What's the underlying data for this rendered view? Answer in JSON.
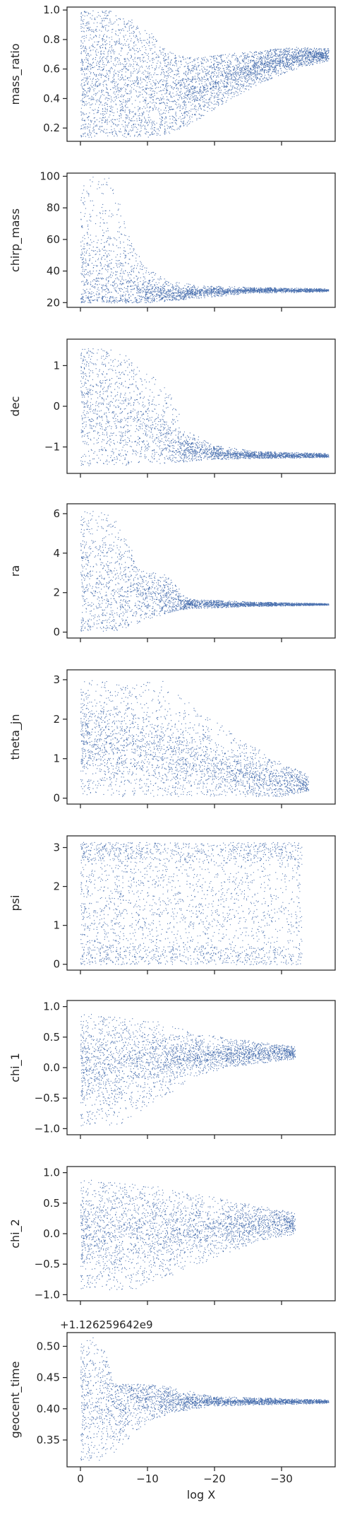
{
  "chart_data": {
    "type": "scatter",
    "layout": "stacked-panels-shared-x",
    "xlabel": "log X",
    "x_ticks": [
      0,
      -10,
      -20,
      -30
    ],
    "xlim": [
      2,
      -38
    ],
    "marker_color": "#4c72b0",
    "grid": false,
    "panels": [
      {
        "ylabel": "mass_ratio",
        "ylim": [
          0.11,
          1.02
        ],
        "y_ticks": [
          0.2,
          0.4,
          0.6,
          0.8,
          1.0
        ],
        "y_tick_labels": [
          "0.2",
          "0.4",
          "0.6",
          "0.8",
          "1.0"
        ],
        "x_tick_labels_shown": false,
        "offset_text": "",
        "density": 6000,
        "envelope": [
          {
            "x": 0,
            "lo": 0.14,
            "hi": 1.0,
            "c": 0.55,
            "spread": 0.28
          },
          {
            "x": -5,
            "lo": 0.14,
            "hi": 1.0,
            "c": 0.5,
            "spread": 0.28
          },
          {
            "x": -10,
            "lo": 0.14,
            "hi": 0.88,
            "c": 0.42,
            "spread": 0.22
          },
          {
            "x": -13,
            "lo": 0.16,
            "hi": 0.72,
            "c": 0.42,
            "spread": 0.16
          },
          {
            "x": -17,
            "lo": 0.24,
            "hi": 0.68,
            "c": 0.47,
            "spread": 0.12
          },
          {
            "x": -21,
            "lo": 0.36,
            "hi": 0.7,
            "c": 0.54,
            "spread": 0.09
          },
          {
            "x": -25,
            "lo": 0.46,
            "hi": 0.72,
            "c": 0.6,
            "spread": 0.06
          },
          {
            "x": -29,
            "lo": 0.55,
            "hi": 0.74,
            "c": 0.65,
            "spread": 0.04
          },
          {
            "x": -32,
            "lo": 0.6,
            "hi": 0.75,
            "c": 0.68,
            "spread": 0.03
          },
          {
            "x": -37,
            "lo": 0.66,
            "hi": 0.74,
            "c": 0.7,
            "spread": 0.02
          }
        ]
      },
      {
        "ylabel": "chirp_mass",
        "ylim": [
          17,
          102
        ],
        "y_ticks": [
          20,
          40,
          60,
          80,
          100
        ],
        "y_tick_labels": [
          "20",
          "40",
          "60",
          "80",
          "100"
        ],
        "x_tick_labels_shown": false,
        "offset_text": "",
        "density": 4500,
        "envelope": [
          {
            "x": 0,
            "lo": 20,
            "hi": 100,
            "c": 35,
            "spread": 18
          },
          {
            "x": -5,
            "lo": 20,
            "hi": 100,
            "c": 32,
            "spread": 14
          },
          {
            "x": -7,
            "lo": 20,
            "hi": 65,
            "c": 28,
            "spread": 8
          },
          {
            "x": -10,
            "lo": 20,
            "hi": 42,
            "c": 26,
            "spread": 4
          },
          {
            "x": -13,
            "lo": 21,
            "hi": 34,
            "c": 25,
            "spread": 2.5
          },
          {
            "x": -18,
            "lo": 23,
            "hi": 31,
            "c": 27,
            "spread": 1.2
          },
          {
            "x": -25,
            "lo": 26,
            "hi": 30,
            "c": 28,
            "spread": 0.7
          },
          {
            "x": -37,
            "lo": 27,
            "hi": 29,
            "c": 28,
            "spread": 0.3
          }
        ]
      },
      {
        "ylabel": "dec",
        "ylim": [
          -1.65,
          1.65
        ],
        "y_ticks": [
          -1,
          0,
          1
        ],
        "y_tick_labels": [
          "−1",
          "0",
          "1"
        ],
        "x_tick_labels_shown": false,
        "offset_text": "",
        "density": 5000,
        "envelope": [
          {
            "x": 0,
            "lo": -1.45,
            "hi": 1.45,
            "c": 0.2,
            "spread": 0.9
          },
          {
            "x": -6,
            "lo": -1.45,
            "hi": 1.4,
            "c": -0.3,
            "spread": 0.8
          },
          {
            "x": -10,
            "lo": -1.4,
            "hi": 0.9,
            "c": -0.6,
            "spread": 0.5
          },
          {
            "x": -13,
            "lo": -1.4,
            "hi": 0.4,
            "c": -0.9,
            "spread": 0.3
          },
          {
            "x": -16,
            "lo": -1.35,
            "hi": -0.6,
            "c": -1.05,
            "spread": 0.15
          },
          {
            "x": -20,
            "lo": -1.3,
            "hi": -0.95,
            "c": -1.15,
            "spread": 0.07
          },
          {
            "x": -26,
            "lo": -1.28,
            "hi": -1.1,
            "c": -1.2,
            "spread": 0.04
          },
          {
            "x": -37,
            "lo": -1.25,
            "hi": -1.15,
            "c": -1.21,
            "spread": 0.02
          }
        ]
      },
      {
        "ylabel": "ra",
        "ylim": [
          -0.3,
          6.5
        ],
        "y_ticks": [
          0,
          2,
          4,
          6
        ],
        "y_tick_labels": [
          "0",
          "2",
          "4",
          "6"
        ],
        "x_tick_labels_shown": false,
        "offset_text": "",
        "density": 5000,
        "envelope": [
          {
            "x": 0,
            "lo": 0.05,
            "hi": 6.25,
            "c": 2.5,
            "spread": 2.2
          },
          {
            "x": -5,
            "lo": 0.05,
            "hi": 6.0,
            "c": 2.0,
            "spread": 1.6
          },
          {
            "x": -9,
            "lo": 0.5,
            "hi": 3.2,
            "c": 1.9,
            "spread": 0.7
          },
          {
            "x": -13,
            "lo": 1.0,
            "hi": 2.9,
            "c": 1.6,
            "spread": 0.5
          },
          {
            "x": -16,
            "lo": 1.2,
            "hi": 1.7,
            "c": 1.45,
            "spread": 0.12
          },
          {
            "x": -25,
            "lo": 1.3,
            "hi": 1.55,
            "c": 1.42,
            "spread": 0.05
          },
          {
            "x": -37,
            "lo": 1.38,
            "hi": 1.46,
            "c": 1.42,
            "spread": 0.02
          }
        ]
      },
      {
        "ylabel": "theta_jn",
        "ylim": [
          -0.15,
          3.25
        ],
        "y_ticks": [
          0,
          1,
          2,
          3
        ],
        "y_tick_labels": [
          "0",
          "1",
          "2",
          "3"
        ],
        "x_tick_labels_shown": false,
        "offset_text": "",
        "density": 5500,
        "envelope": [
          {
            "x": 0,
            "lo": 0.1,
            "hi": 3.0,
            "c": 1.5,
            "spread": 0.6
          },
          {
            "x": -6,
            "lo": 0.05,
            "hi": 3.0,
            "c": 1.3,
            "spread": 0.6
          },
          {
            "x": -12,
            "lo": 0.05,
            "hi": 3.0,
            "c": 1.1,
            "spread": 0.5
          },
          {
            "x": -18,
            "lo": 0.05,
            "hi": 2.2,
            "c": 0.85,
            "spread": 0.4
          },
          {
            "x": -24,
            "lo": 0.05,
            "hi": 1.5,
            "c": 0.6,
            "spread": 0.3
          },
          {
            "x": -30,
            "lo": 0.05,
            "hi": 0.9,
            "c": 0.4,
            "spread": 0.2
          },
          {
            "x": -34,
            "lo": 0.2,
            "hi": 0.6,
            "c": 0.35,
            "spread": 0.1
          }
        ]
      },
      {
        "ylabel": "psi",
        "ylim": [
          -0.15,
          3.3
        ],
        "y_ticks": [
          0,
          1,
          2,
          3
        ],
        "y_tick_labels": [
          "0",
          "1",
          "2",
          "3"
        ],
        "x_tick_labels_shown": false,
        "offset_text": "",
        "density": 6000,
        "envelope": [
          {
            "x": 0,
            "lo": 0.0,
            "hi": 3.14,
            "c": 1.57,
            "spread": 2.0
          },
          {
            "x": -15,
            "lo": 0.0,
            "hi": 3.14,
            "c": 1.57,
            "spread": 2.0
          },
          {
            "x": -30,
            "lo": 0.0,
            "hi": 3.14,
            "c": 1.57,
            "spread": 2.0
          },
          {
            "x": -33,
            "lo": 0.0,
            "hi": 3.14,
            "c": 1.57,
            "spread": 2.0
          }
        ]
      },
      {
        "ylabel": "chi_1",
        "ylim": [
          -1.1,
          1.1
        ],
        "y_ticks": [
          -1.0,
          -0.5,
          0.0,
          0.5,
          1.0
        ],
        "y_tick_labels": [
          "−1.0",
          "−0.5",
          "0.0",
          "0.5",
          "1.0"
        ],
        "x_tick_labels_shown": false,
        "offset_text": "",
        "density": 5500,
        "envelope": [
          {
            "x": 0,
            "lo": -0.95,
            "hi": 0.9,
            "c": 0.0,
            "spread": 0.45
          },
          {
            "x": -6,
            "lo": -0.95,
            "hi": 0.85,
            "c": 0.05,
            "spread": 0.35
          },
          {
            "x": -12,
            "lo": -0.5,
            "hi": 0.75,
            "c": 0.15,
            "spread": 0.2
          },
          {
            "x": -18,
            "lo": -0.1,
            "hi": 0.55,
            "c": 0.2,
            "spread": 0.12
          },
          {
            "x": -25,
            "lo": 0.05,
            "hi": 0.45,
            "c": 0.23,
            "spread": 0.08
          },
          {
            "x": -32,
            "lo": 0.15,
            "hi": 0.35,
            "c": 0.25,
            "spread": 0.05
          }
        ]
      },
      {
        "ylabel": "chi_2",
        "ylim": [
          -1.1,
          1.1
        ],
        "y_ticks": [
          -1.0,
          -0.5,
          0.0,
          0.5,
          1.0
        ],
        "y_tick_labels": [
          "−1.0",
          "−0.5",
          "0.0",
          "0.5",
          "1.0"
        ],
        "x_tick_labels_shown": false,
        "offset_text": "",
        "density": 6000,
        "envelope": [
          {
            "x": 0,
            "lo": -0.9,
            "hi": 0.9,
            "c": 0.0,
            "spread": 0.4
          },
          {
            "x": -7,
            "lo": -0.95,
            "hi": 0.85,
            "c": 0.0,
            "spread": 0.4
          },
          {
            "x": -13,
            "lo": -0.7,
            "hi": 0.75,
            "c": 0.05,
            "spread": 0.3
          },
          {
            "x": -20,
            "lo": -0.4,
            "hi": 0.6,
            "c": 0.1,
            "spread": 0.2
          },
          {
            "x": -27,
            "lo": -0.1,
            "hi": 0.45,
            "c": 0.15,
            "spread": 0.12
          },
          {
            "x": -32,
            "lo": 0.0,
            "hi": 0.35,
            "c": 0.18,
            "spread": 0.08
          }
        ]
      },
      {
        "ylabel": "geocent_time",
        "ylim": [
          0.307,
          0.522
        ],
        "y_ticks": [
          0.35,
          0.4,
          0.45,
          0.5
        ],
        "y_tick_labels": [
          "0.35",
          "0.40",
          "0.45",
          "0.50"
        ],
        "x_tick_labels_shown": true,
        "offset_text": "+1.126259642e9",
        "density": 4500,
        "envelope": [
          {
            "x": 0,
            "lo": 0.318,
            "hi": 0.515,
            "c": 0.41,
            "spread": 0.06
          },
          {
            "x": -3,
            "lo": 0.318,
            "hi": 0.515,
            "c": 0.41,
            "spread": 0.05
          },
          {
            "x": -5,
            "lo": 0.33,
            "hi": 0.44,
            "c": 0.41,
            "spread": 0.03
          },
          {
            "x": -10,
            "lo": 0.38,
            "hi": 0.44,
            "c": 0.415,
            "spread": 0.015
          },
          {
            "x": -14,
            "lo": 0.395,
            "hi": 0.435,
            "c": 0.412,
            "spread": 0.008
          },
          {
            "x": -20,
            "lo": 0.405,
            "hi": 0.42,
            "c": 0.412,
            "spread": 0.003
          },
          {
            "x": -37,
            "lo": 0.409,
            "hi": 0.415,
            "c": 0.412,
            "spread": 0.001
          }
        ]
      }
    ]
  }
}
